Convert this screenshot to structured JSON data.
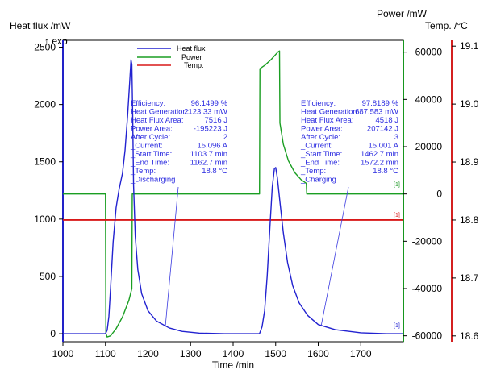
{
  "chart_data": {
    "type": "line",
    "xlabel": "Time /min",
    "xlim": [
      1000,
      1800
    ],
    "xticks": [
      1000,
      1100,
      1200,
      1300,
      1400,
      1500,
      1600,
      1700
    ],
    "axes": {
      "left": {
        "label": "Heat flux /mW",
        "note": "↑ exo",
        "lim": [
          -70,
          2560
        ],
        "ticks": [
          0,
          500,
          1000,
          1500,
          2000,
          2500
        ],
        "color": "#2222c8"
      },
      "right1": {
        "label": "Power /mW",
        "lim": [
          -62500,
          65000
        ],
        "ticks": [
          -60000,
          -40000,
          -20000,
          0,
          20000,
          40000,
          60000
        ],
        "color": "#16961e"
      },
      "right2": {
        "label": "Temp. /°C",
        "lim": [
          18.59,
          19.11
        ],
        "ticks": [
          18.6,
          18.7,
          18.8,
          18.9,
          19.0,
          19.1
        ],
        "color": "#d42020"
      }
    },
    "legend": {
      "position": "top-center",
      "entries": [
        "Heat flux",
        "Power",
        "Temp."
      ]
    },
    "series": [
      {
        "name": "Heat flux",
        "axis": "left",
        "color": "#2222d0",
        "points": [
          [
            1000,
            0
          ],
          [
            1100,
            0
          ],
          [
            1104,
            30
          ],
          [
            1108,
            150
          ],
          [
            1112,
            400
          ],
          [
            1118,
            800
          ],
          [
            1125,
            1100
          ],
          [
            1132,
            1260
          ],
          [
            1140,
            1400
          ],
          [
            1146,
            1600
          ],
          [
            1152,
            1900
          ],
          [
            1157,
            2200
          ],
          [
            1160,
            2390
          ],
          [
            1162,
            2350
          ],
          [
            1164,
            1900
          ],
          [
            1166,
            1300
          ],
          [
            1170,
            850
          ],
          [
            1176,
            560
          ],
          [
            1185,
            350
          ],
          [
            1200,
            200
          ],
          [
            1220,
            110
          ],
          [
            1250,
            50
          ],
          [
            1280,
            20
          ],
          [
            1320,
            5
          ],
          [
            1380,
            0
          ],
          [
            1462,
            0
          ],
          [
            1468,
            60
          ],
          [
            1474,
            200
          ],
          [
            1480,
            500
          ],
          [
            1486,
            900
          ],
          [
            1492,
            1280
          ],
          [
            1497,
            1440
          ],
          [
            1500,
            1450
          ],
          [
            1504,
            1360
          ],
          [
            1510,
            1150
          ],
          [
            1518,
            880
          ],
          [
            1528,
            620
          ],
          [
            1540,
            420
          ],
          [
            1555,
            270
          ],
          [
            1575,
            160
          ],
          [
            1600,
            80
          ],
          [
            1640,
            35
          ],
          [
            1700,
            8
          ],
          [
            1760,
            0
          ],
          [
            1800,
            0
          ]
        ]
      },
      {
        "name": "Power",
        "axis": "right1",
        "color": "#1a9e22",
        "points": [
          [
            1000,
            0
          ],
          [
            1100,
            0
          ],
          [
            1101,
            -59000
          ],
          [
            1104,
            -60500
          ],
          [
            1112,
            -60000
          ],
          [
            1125,
            -57000
          ],
          [
            1140,
            -52000
          ],
          [
            1155,
            -45000
          ],
          [
            1162,
            -40000
          ],
          [
            1163,
            0
          ],
          [
            1462,
            0
          ],
          [
            1463,
            53000
          ],
          [
            1475,
            54500
          ],
          [
            1490,
            57000
          ],
          [
            1505,
            60000
          ],
          [
            1509,
            60500
          ],
          [
            1510,
            30000
          ],
          [
            1518,
            21000
          ],
          [
            1530,
            14000
          ],
          [
            1545,
            9000
          ],
          [
            1560,
            6000
          ],
          [
            1572,
            4500
          ],
          [
            1573,
            0
          ],
          [
            1800,
            0
          ]
        ]
      },
      {
        "name": "Temp.",
        "axis": "right2",
        "color": "#d81818",
        "points": [
          [
            1000,
            18.8
          ],
          [
            1200,
            18.8
          ],
          [
            1400,
            18.8
          ],
          [
            1600,
            18.8
          ],
          [
            1800,
            18.8
          ]
        ]
      }
    ],
    "annotations": [
      {
        "rows": [
          {
            "k": "Efficiency:",
            "v": "96.1499 %"
          },
          {
            "k": "Heat Generation:",
            "v": "2123.33 mW"
          },
          {
            "k": "Heat Flux Area:",
            "v": "7516 J"
          },
          {
            "k": "Power Area:",
            "v": "-195223 J"
          },
          {
            "k": "After Cycle:",
            "v": "2"
          },
          {
            "k": "_Current:",
            "v": "15.096 A"
          },
          {
            "k": "_Start Time:",
            "v": "1103.7 min"
          },
          {
            "k": "_End Time:",
            "v": "1162.7 min"
          },
          {
            "k": "_Temp:",
            "v": "18.8 °C"
          },
          {
            "k": "_Discharging",
            "v": ""
          }
        ]
      },
      {
        "rows": [
          {
            "k": "Efficiency:",
            "v": "97.8189 %"
          },
          {
            "k": "Heat Generation:",
            "v": "687.583 mW"
          },
          {
            "k": "Heat Flux Area:",
            "v": "4518 J"
          },
          {
            "k": "Power Area:",
            "v": "207142 J"
          },
          {
            "k": "After Cycle:",
            "v": "3"
          },
          {
            "k": "_Current:",
            "v": "15.001 A"
          },
          {
            "k": "_Start Time:",
            "v": "1462.7 min"
          },
          {
            "k": "_End Time:",
            "v": "1572.2 min"
          },
          {
            "k": "_Temp:",
            "v": "18.8 °C"
          },
          {
            "k": "_Charging",
            "v": ""
          }
        ]
      }
    ],
    "markers": [
      "[1]",
      "[1]",
      "[1]"
    ]
  }
}
